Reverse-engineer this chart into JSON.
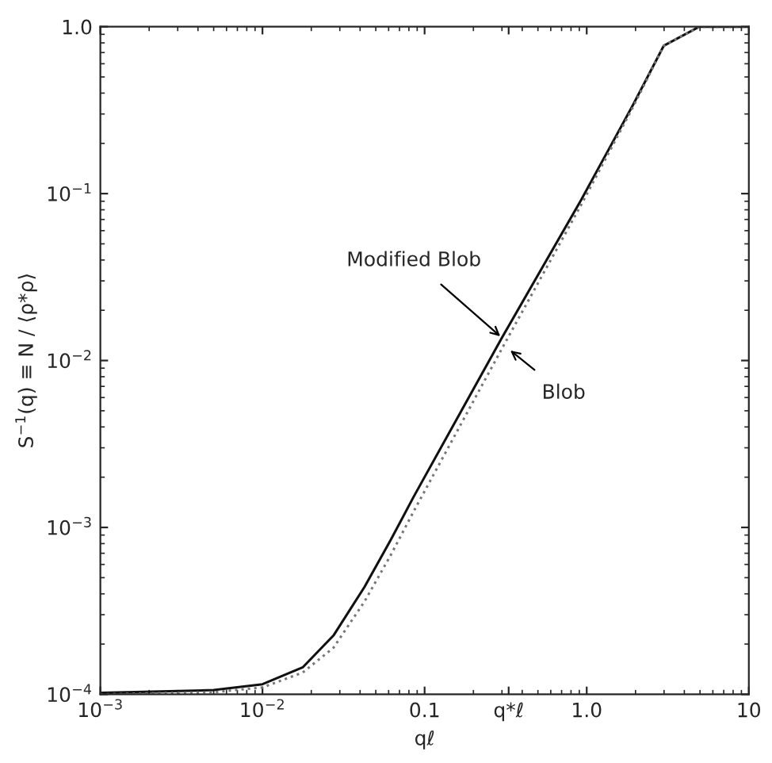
{
  "chart_data": {
    "type": "line",
    "xlabel": "qℓ",
    "ylabel": "S$^{−1}$(q) ≡ N / ⟨ρ*ρ⟩",
    "log": "xy",
    "grid": false,
    "marker": "none",
    "xlim": [
      0.001,
      10
    ],
    "ylim": [
      0.0001,
      1.0
    ],
    "xticks": [
      {
        "value": 0.001,
        "label": "10$^{−3}$"
      },
      {
        "value": 0.01,
        "label": "10$^{−2}$"
      },
      {
        "value": 0.1,
        "label": "0.1"
      },
      {
        "value": 0.33,
        "label": "q*ℓ"
      },
      {
        "value": 1.0,
        "label": "1.0"
      },
      {
        "value": 10,
        "label": "10"
      }
    ],
    "yticks": [
      {
        "value": 0.0001,
        "label": "10$^{−4}$"
      },
      {
        "value": 0.001,
        "label": "10$^{−3}$"
      },
      {
        "value": 0.01,
        "label": "10$^{−2}$"
      },
      {
        "value": 0.1,
        "label": "10$^{−1}$"
      },
      {
        "value": 1.0,
        "label": "1.0"
      }
    ],
    "series": [
      {
        "color": "#111111",
        "line_style": "solid",
        "x": [
          0.001,
          0.005,
          0.01,
          0.0177,
          0.0274,
          0.0426,
          0.0617,
          0.0857,
          0.3,
          0.92,
          1.93,
          2.99,
          4.95,
          10
        ],
        "values": [
          0.000102,
          0.000106,
          0.000115,
          0.000145,
          0.000225,
          0.00044,
          0.00084,
          0.00153,
          0.0137,
          0.091,
          0.34,
          0.77,
          1.0,
          1.0
        ]
      },
      {
        "color": "#777777",
        "line_style": "dotted",
        "x": [
          0.001,
          0.005,
          0.01,
          0.0177,
          0.0274,
          0.0426,
          0.0617,
          0.0857,
          0.3,
          0.92,
          1.93,
          2.99,
          4.95,
          10
        ],
        "values": [
          0.0001,
          0.000103,
          0.00011,
          0.000135,
          0.00019,
          0.00036,
          0.00068,
          0.00125,
          0.0118,
          0.085,
          0.33,
          0.77,
          1.0,
          1.0
        ]
      }
    ],
    "annotations": [
      {
        "text": "Modified Blob",
        "x": 0.3,
        "y": 0.0137
      },
      {
        "text": "Blob",
        "x": 0.33,
        "y": 0.0117
      }
    ]
  }
}
